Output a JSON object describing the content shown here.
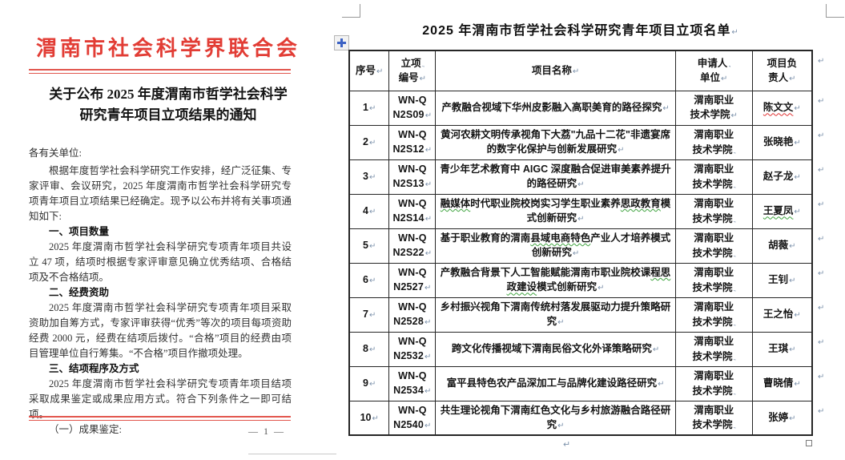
{
  "marks": {
    "paragraph": "↵",
    "wrap": ".,"
  },
  "left_page": {
    "org_title": "渭南市社会科学界联合会",
    "doc_title_line1": "关于公布 2025 年度渭南市哲学社会科学",
    "doc_title_line2": "研究青年项目立项结果的通知",
    "salutation": "各有关单位:",
    "paragraphs": [
      {
        "type": "para",
        "text": "根据年度哲学社会科学研究工作安排，经广泛征集、专家评审、会议研究，2025 年度渭南市哲学社会科学研究专项青年项目立项结果已经确定。现予以公布并将有关事项通知如下:"
      },
      {
        "type": "heading",
        "text": "一、项目数量"
      },
      {
        "type": "para",
        "text": "2025 年度渭南市哲学社会科学研究专项青年项目共设立 47 项，结项时根据专家评审意见确立优秀结项、合格结项及不合格结项。"
      },
      {
        "type": "heading",
        "text": "二、经费资助"
      },
      {
        "type": "para",
        "text": "2025 年度渭南市哲学社会科学研究专项青年项目采取资助加自筹方式，专家评审获得“优秀”等次的项目每项资助经费 2000 元，经费在结项后拨付。“合格”项目的经费由项目管理单位自行筹集。“不合格”项目作撤项处理。"
      },
      {
        "type": "heading",
        "text": "三、结项程序及方式"
      },
      {
        "type": "para",
        "text": "2025 年度渭南市哲学社会科学研究专项青年项目结项采取成果鉴定或成果应用方式。符合下列条件之一即可结项。"
      },
      {
        "type": "para",
        "text": "（一）成果鉴定:"
      }
    ],
    "page_number": "— 1 —"
  },
  "right_page": {
    "title": "2025 年渭南市哲学社会科学研究青年项目立项名单",
    "table": {
      "headers": [
        {
          "key": "serial",
          "lines": [
            "序号"
          ],
          "wrap": false
        },
        {
          "key": "code",
          "lines": [
            "立项",
            "编号"
          ],
          "wrap": true
        },
        {
          "key": "project",
          "lines": [
            "项目名称"
          ],
          "wrap": false
        },
        {
          "key": "applicant-org",
          "lines": [
            "申请人",
            "单位"
          ],
          "wrap": true
        },
        {
          "key": "leader",
          "lines": [
            "项目负",
            "责人"
          ],
          "wrap": false
        }
      ],
      "rows": [
        {
          "no": "1",
          "code": [
            "WN-Q",
            "N2S09"
          ],
          "project": [
            {
              "t": "产教融合视域下华州皮影融入高职美育的路径探究"
            }
          ],
          "org": [
            "渭南职业",
            "技术学院"
          ],
          "org_mark": "return",
          "leader": [
            {
              "t": "陈文文",
              "u": "red"
            }
          ]
        },
        {
          "no": "2",
          "code": [
            "WN-Q",
            "N2S12"
          ],
          "project": [
            {
              "t": "黄河农耕文明传承视角下大荔\"九品十二花\"非遗宴席的数字化保护与创新发展研究"
            }
          ],
          "org": [
            "渭南职业",
            "技术学院"
          ],
          "org_mark": "wrap",
          "leader": [
            {
              "t": "张晓艳"
            }
          ]
        },
        {
          "no": "3",
          "code": [
            "WN-Q",
            "N2S13"
          ],
          "project": [
            {
              "t": "青少年艺术教育中 AIGC 深度融合促进审美素养提升的路径研究"
            }
          ],
          "org": [
            "渭南职业",
            "技术学院"
          ],
          "org_mark": "wrap",
          "leader": [
            {
              "t": "赵子龙"
            }
          ]
        },
        {
          "no": "4",
          "code": [
            "WN-Q",
            "N2S14"
          ],
          "project": [
            {
              "t": "融媒体",
              "u": "green"
            },
            {
              "t": "时代职业院校岗实习学生职业素养"
            },
            {
              "t": "思政教育",
              "u": "green"
            },
            {
              "t": "模式创新研究"
            }
          ],
          "org": [
            "渭南职业",
            "技术学院"
          ],
          "org_mark": "wrap",
          "leader": [
            {
              "t": "王夏凤",
              "u": "green"
            }
          ]
        },
        {
          "no": "5",
          "code": [
            "WN-Q",
            "N2S22"
          ],
          "project": [
            {
              "t": "基于职业教育的渭南"
            },
            {
              "t": "县域电商特色",
              "u": "green"
            },
            {
              "t": "产业人才培养模式创新研究"
            }
          ],
          "org": [
            "渭南职业",
            "技术学院"
          ],
          "org_mark": "wrap",
          "leader": [
            {
              "t": "胡薇"
            }
          ]
        },
        {
          "no": "6",
          "code": [
            "WN-Q",
            "N2527"
          ],
          "project": [
            {
              "t": "产教融合背景下人工智能赋能渭南市职业院校课"
            },
            {
              "t": "程思政建设",
              "u": "green"
            },
            {
              "t": "模式创新研究"
            }
          ],
          "org": [
            "渭南职业",
            "技术学院"
          ],
          "org_mark": "wrap",
          "leader": [
            {
              "t": "王钊"
            }
          ]
        },
        {
          "no": "7",
          "code": [
            "WN-Q",
            "N2528"
          ],
          "project": [
            {
              "t": "乡村振兴视角下渭南传统村落发展驱动力提升策略研究"
            }
          ],
          "org": [
            "渭南职业",
            "技术学院"
          ],
          "org_mark": "wrap",
          "leader": [
            {
              "t": "王之怡"
            }
          ]
        },
        {
          "no": "8",
          "code": [
            "WN-Q",
            "N2532"
          ],
          "project": [
            {
              "t": "跨文化传播视域下渭南民俗文化外译策略研究"
            }
          ],
          "org": [
            "渭南职业",
            "技术学院"
          ],
          "org_mark": "wrap",
          "leader": [
            {
              "t": "王琪"
            }
          ]
        },
        {
          "no": "9",
          "code": [
            "WN-Q",
            "N2534"
          ],
          "project": [
            {
              "t": "富平县特色农产品深加工与品牌化建设路径研究"
            }
          ],
          "org": [
            "渭南职业",
            "技术学院"
          ],
          "org_mark": "wrap",
          "leader": [
            {
              "t": "曹晓倩"
            }
          ]
        },
        {
          "no": "10",
          "code": [
            "WN-Q",
            "N2540"
          ],
          "project": [
            {
              "t": "共生理论视角下渭南红色文化与乡村旅游融合路径研究"
            }
          ],
          "org": [
            "渭南职业",
            "技术学院"
          ],
          "org_mark": "wrap",
          "leader": [
            {
              "t": "张婷"
            }
          ]
        }
      ]
    }
  }
}
